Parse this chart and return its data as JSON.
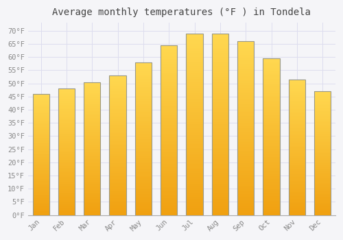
{
  "title": "Average monthly temperatures (°F ) in Tondela",
  "months": [
    "Jan",
    "Feb",
    "Mar",
    "Apr",
    "May",
    "Jun",
    "Jul",
    "Aug",
    "Sep",
    "Oct",
    "Nov",
    "Dec"
  ],
  "values": [
    46,
    48,
    50.5,
    53,
    58,
    64.5,
    69,
    69,
    66,
    59.5,
    51.5,
    47
  ],
  "bar_color_top": "#FFD050",
  "bar_color_bottom": "#F0A010",
  "bar_edge_color": "#999988",
  "ylim": [
    0,
    73
  ],
  "yticks": [
    0,
    5,
    10,
    15,
    20,
    25,
    30,
    35,
    40,
    45,
    50,
    55,
    60,
    65,
    70
  ],
  "background_color": "#F5F5F8",
  "plot_bg_color": "#F5F5F8",
  "grid_color": "#DDDDEE",
  "title_fontsize": 10,
  "tick_fontsize": 7.5,
  "tick_color": "#888888",
  "font_family": "monospace",
  "bar_width": 0.65
}
